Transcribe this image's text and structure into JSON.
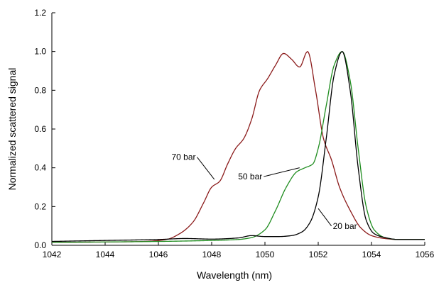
{
  "chart_data": {
    "type": "line",
    "xlabel": "Wavelength (nm)",
    "ylabel": "Normalized scattered signal",
    "xlim": [
      1042,
      1056
    ],
    "ylim": [
      0.0,
      1.2
    ],
    "xticks": [
      "1042",
      "1044",
      "1046",
      "1048",
      "1050",
      "1052",
      "1054",
      "1056"
    ],
    "yticks": [
      "0.0",
      "0.2",
      "0.4",
      "0.6",
      "0.8",
      "1.0",
      "1.2"
    ],
    "grid": false,
    "series": [
      {
        "name": "70 bar",
        "color": "#8b1a1a",
        "x": [
          1042,
          1044,
          1045.5,
          1046.3,
          1046.8,
          1047.3,
          1047.7,
          1048.0,
          1048.3,
          1048.6,
          1048.9,
          1049.2,
          1049.5,
          1049.8,
          1050.1,
          1050.4,
          1050.7,
          1051.0,
          1051.3,
          1051.6,
          1051.9,
          1052.2,
          1052.5,
          1052.8,
          1053.2,
          1053.6,
          1054.0,
          1054.5,
          1055.0,
          1056
        ],
        "y": [
          0.015,
          0.017,
          0.02,
          0.03,
          0.06,
          0.12,
          0.22,
          0.3,
          0.33,
          0.42,
          0.5,
          0.55,
          0.65,
          0.8,
          0.86,
          0.93,
          0.99,
          0.96,
          0.92,
          1.0,
          0.8,
          0.55,
          0.44,
          0.3,
          0.18,
          0.09,
          0.05,
          0.035,
          0.03,
          0.03
        ]
      },
      {
        "name": "50 bar",
        "color": "#1e8c1e",
        "x": [
          1042,
          1046,
          1048,
          1049,
          1049.5,
          1050.0,
          1050.4,
          1050.8,
          1051.2,
          1051.5,
          1051.8,
          1052.0,
          1052.3,
          1052.6,
          1052.9,
          1053.2,
          1053.5,
          1053.8,
          1054.1,
          1054.5,
          1055.0,
          1056
        ],
        "y": [
          0.015,
          0.02,
          0.025,
          0.03,
          0.04,
          0.08,
          0.18,
          0.3,
          0.38,
          0.4,
          0.42,
          0.5,
          0.72,
          0.93,
          1.0,
          0.85,
          0.5,
          0.2,
          0.08,
          0.04,
          0.03,
          0.03
        ]
      },
      {
        "name": "20 bar",
        "color": "#000000",
        "x": [
          1042,
          1044,
          1046,
          1047,
          1048,
          1049,
          1049.5,
          1050.0,
          1050.5,
          1051.0,
          1051.4,
          1051.7,
          1052.0,
          1052.3,
          1052.6,
          1052.9,
          1053.2,
          1053.5,
          1053.8,
          1054.1,
          1054.5,
          1055.0,
          1056
        ],
        "y": [
          0.02,
          0.025,
          0.03,
          0.035,
          0.032,
          0.038,
          0.05,
          0.045,
          0.045,
          0.05,
          0.07,
          0.12,
          0.25,
          0.55,
          0.88,
          1.0,
          0.8,
          0.4,
          0.13,
          0.06,
          0.04,
          0.03,
          0.03
        ]
      }
    ],
    "annotations": [
      {
        "text": "70 bar",
        "series": "70 bar",
        "x": 1048.1,
        "y": 0.34,
        "label_x": 1047.4,
        "label_y": 0.44,
        "anchor": "end"
      },
      {
        "text": "50 bar",
        "series": "50 bar",
        "x": 1051.3,
        "y": 0.4,
        "label_x": 1049.9,
        "label_y": 0.34,
        "anchor": "end"
      },
      {
        "text": "20 bar",
        "series": "20 bar",
        "x": 1052.0,
        "y": 0.19,
        "label_x": 1052.55,
        "label_y": 0.085,
        "anchor": "start"
      }
    ]
  }
}
